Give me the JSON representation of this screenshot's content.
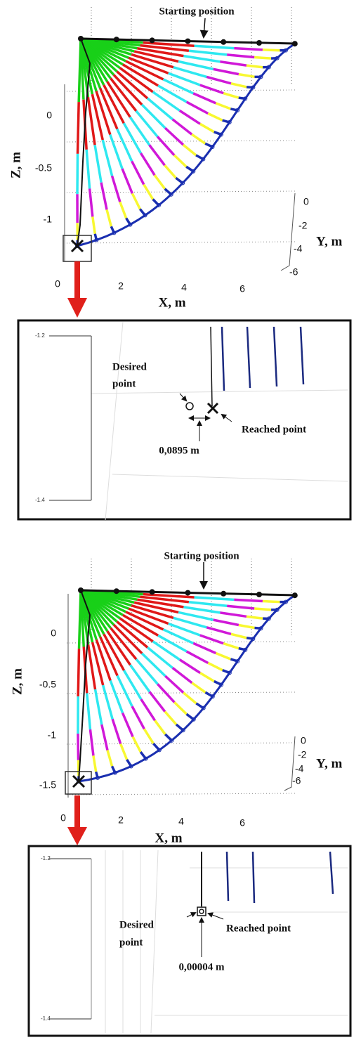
{
  "panels": [
    {
      "title": "Starting position",
      "z_label": "Z, m",
      "x_label": "X, m",
      "y_label": "Y, m",
      "z_ticks": [
        "0",
        "-0.5",
        "-1"
      ],
      "x_ticks": [
        "0",
        "2",
        "4",
        "6"
      ],
      "y_ticks": [
        "0",
        "-2",
        "-4",
        "-6"
      ],
      "zoom": {
        "ticks": [
          "-1.2",
          "-1.4"
        ],
        "desired": [
          "Desired",
          "point"
        ],
        "reached": "Reached point",
        "error": "0,0895 m"
      }
    },
    {
      "title": "Starting position",
      "z_label": "Z, m",
      "x_label": "X, m",
      "y_label": "Y, m",
      "z_ticks": [
        "0",
        "-0.5",
        "-1",
        "-1.5"
      ],
      "x_ticks": [
        "0",
        "2",
        "4",
        "6"
      ],
      "y_ticks": [
        "0",
        "-2",
        "-4",
        "-6"
      ],
      "zoom": {
        "ticks": [
          "-1.2",
          "-1.4"
        ],
        "desired": [
          "Desired",
          "point"
        ],
        "reached": "Reached point",
        "error": "0,00004 m"
      }
    }
  ]
}
